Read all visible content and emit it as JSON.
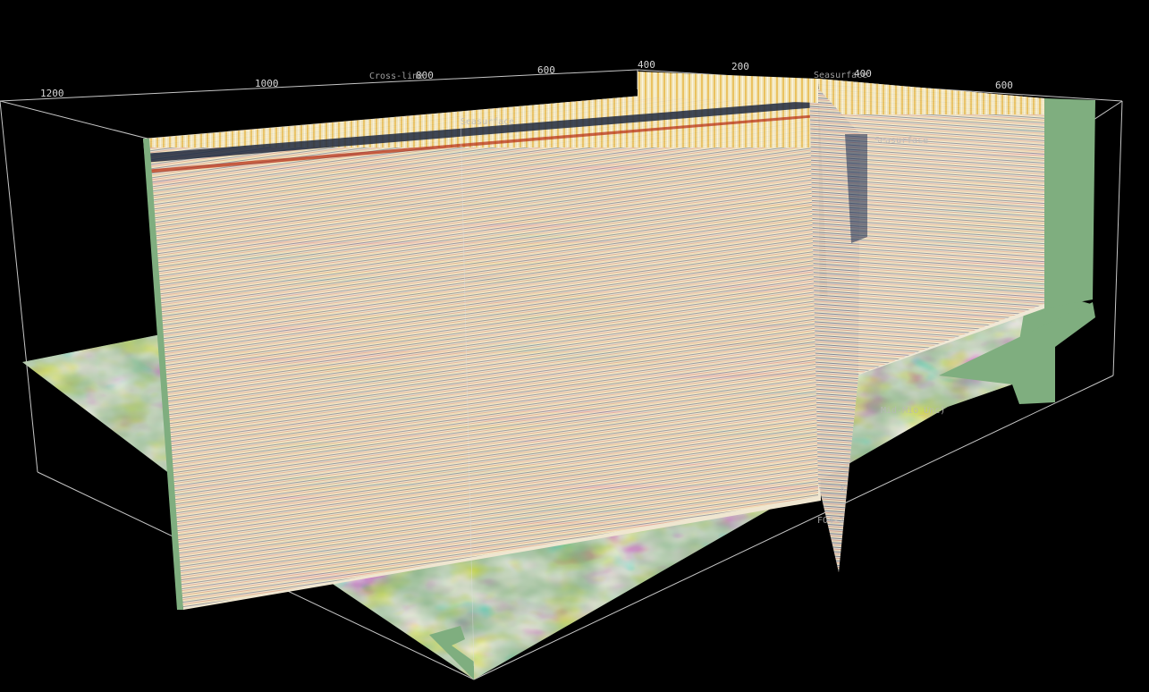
{
  "viewer": {
    "axis_labels": {
      "top_left": [
        "1200",
        "1000",
        "800",
        "600",
        "400"
      ],
      "top_right": [
        "200",
        "400",
        "600"
      ],
      "crossline_title": "Cross-line"
    },
    "horizon_labels": {
      "seasurface_left": "Seasurface",
      "seasurface_right": "Seasurface",
      "seasurface_far": "Seasurface",
      "unconformity": "Mid-Mio_Unc)",
      "fault_a": "K",
      "fault_b": "FO4-2"
    },
    "colors": {
      "background": "#000000",
      "frame": "#bfbfbf",
      "plane_border": "#7fae7f",
      "seismic_positive": "#b01a00",
      "seismic_mid": "#f3e2b8",
      "seismic_negative": "#1a2a4a"
    }
  }
}
